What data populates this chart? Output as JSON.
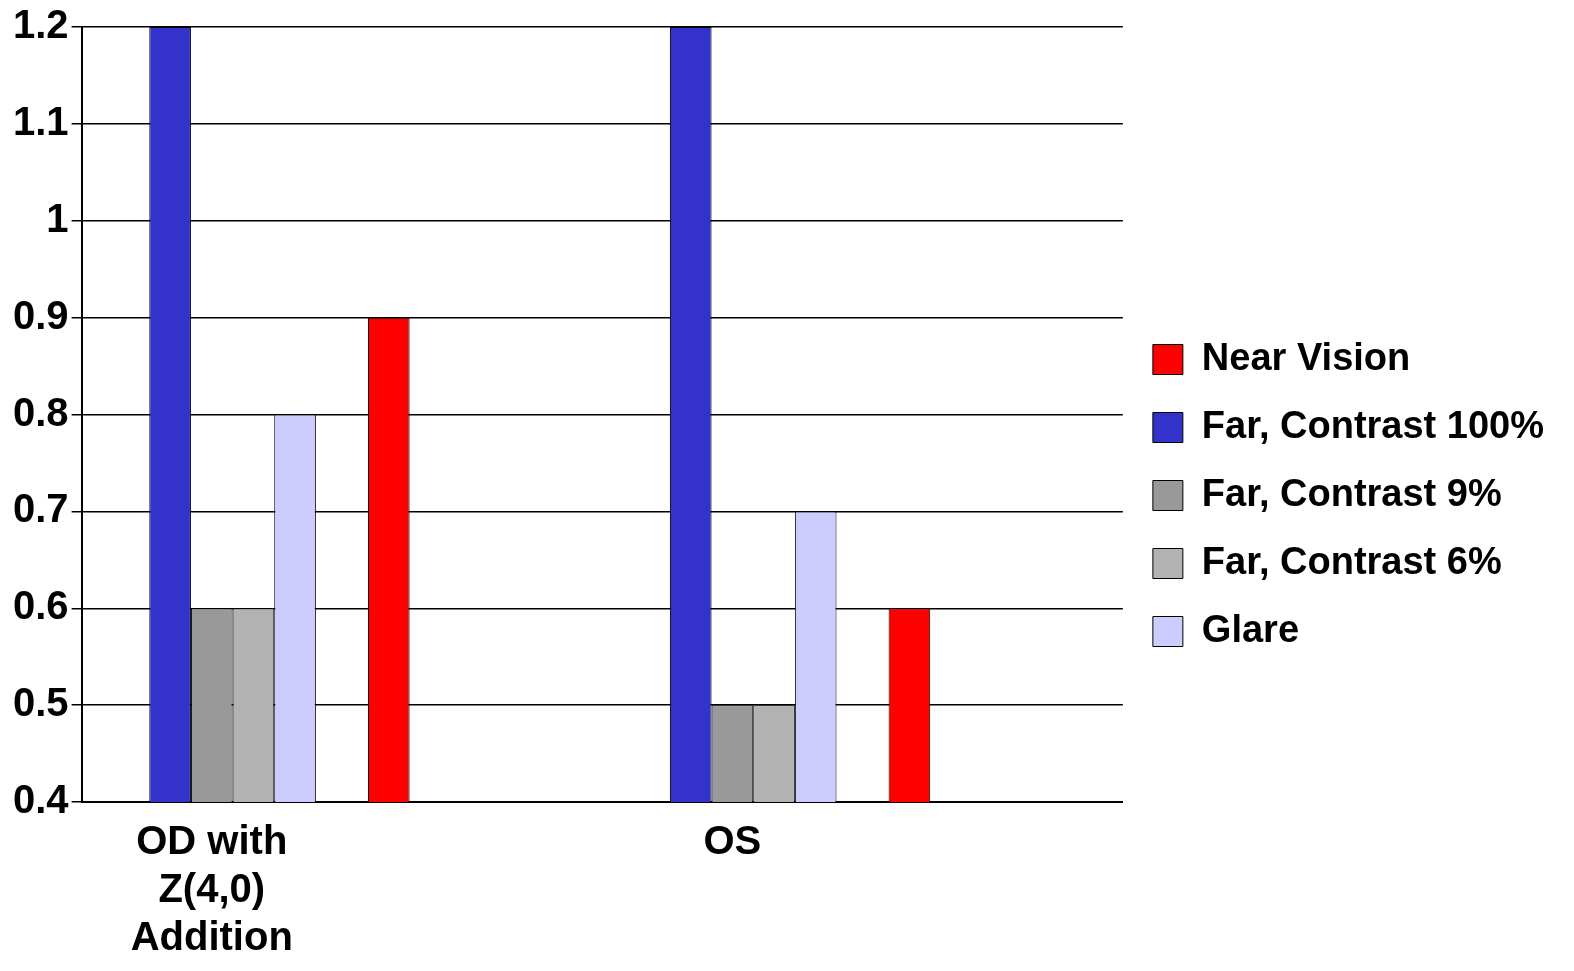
{
  "chart_data": {
    "type": "bar",
    "categories": [
      "OD with Z(4,0) Addition",
      null,
      "OS",
      null
    ],
    "series": [
      {
        "name": "Near Vision",
        "color": "#ff0000",
        "values": [
          null,
          0.9,
          null,
          0.6
        ]
      },
      {
        "name": "Far, Contrast 100%",
        "color": "#3333cc",
        "values": [
          1.2,
          null,
          1.2,
          null
        ]
      },
      {
        "name": "Far, Contrast 9%",
        "color": "#999999",
        "values": [
          0.6,
          null,
          0.5,
          null
        ]
      },
      {
        "name": "Far, Contrast 6%",
        "color": "#b2b2b2",
        "values": [
          0.6,
          null,
          0.5,
          null
        ]
      },
      {
        "name": "Glare",
        "color": "#ccccff",
        "values": [
          0.8,
          null,
          0.7,
          null
        ]
      }
    ],
    "ylim": [
      0.4,
      1.2
    ],
    "yticks": [
      0.4,
      0.5,
      0.6,
      0.7,
      0.8,
      0.9,
      1,
      1.1,
      1.2
    ],
    "grid": "y",
    "legend": "right"
  }
}
